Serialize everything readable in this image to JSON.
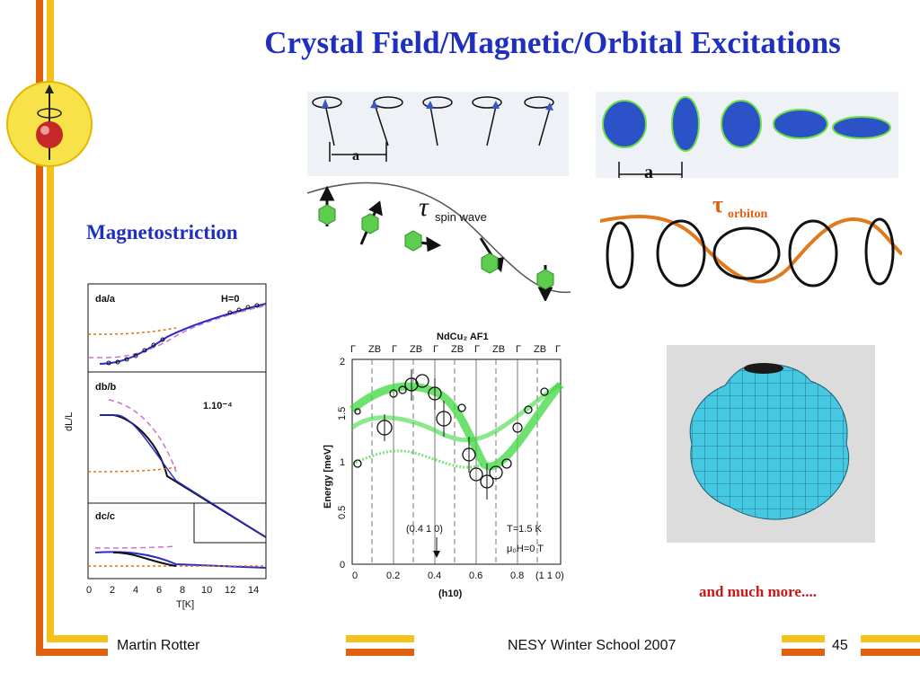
{
  "slide": {
    "title": "Crystal Field/Magnetic/Orbital Excitations",
    "subtitle": "Magnetostriction",
    "caption": "and much more....",
    "footer": {
      "author": "Martin Rotter",
      "event": "NESY Winter School 2007",
      "page": "45"
    },
    "colors": {
      "title": "#1f2fbf",
      "caption": "#c81818",
      "accent_orange": "#e0600f",
      "accent_yellow": "#f5c21b"
    }
  },
  "spin_panel": {
    "label_a": "a",
    "tau_symbol": "τ",
    "tau_subscript": "spin wave"
  },
  "orbital_panel": {
    "label_a": "a",
    "tau_symbol": "τ",
    "tau_subscript": "orbiton"
  },
  "magnetostriction_chart": {
    "panels": [
      {
        "label": "da/a",
        "annotation": "H=0"
      },
      {
        "label": "db/b",
        "annotation": "1.10⁻⁴"
      },
      {
        "label": "dc/c",
        "annotation": ""
      }
    ],
    "ylabel": "dL/L",
    "xlabel": "T[K]",
    "xticks": [
      "0",
      "2",
      "4",
      "6",
      "8",
      "10",
      "12",
      "14"
    ]
  },
  "dispersion_chart": {
    "title": "NdCu₂ AF1",
    "top_labels": [
      "Γ",
      "ZB",
      "Γ",
      "ZB",
      "Γ",
      "ZB",
      "Γ",
      "ZB",
      "Γ",
      "ZB",
      "Γ"
    ],
    "ylabel": "Energy [meV]",
    "yticks": [
      "0",
      "0.5",
      "1",
      "1.5",
      "2"
    ],
    "xticks": [
      "0",
      "0.2",
      "0.4",
      "0.6",
      "0.8"
    ],
    "xlabel": "(h10)",
    "annotation_q": "(0.4 1 0)",
    "annotation_t": "T=1.5 K",
    "annotation_h": "μ₀H=0 T",
    "annotation_end": "(1 1 0)"
  }
}
